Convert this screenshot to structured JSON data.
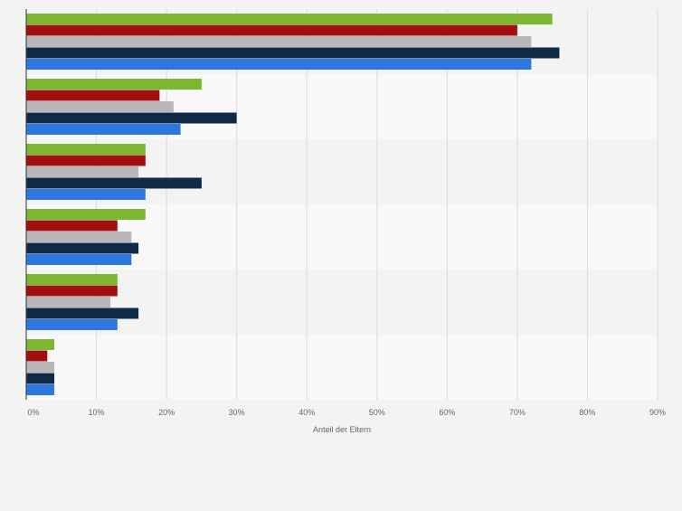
{
  "chart_data": {
    "type": "bar",
    "orientation": "horizontal",
    "xlabel": "Anteil der Eltern",
    "ylabel": "",
    "xlim": [
      0,
      90
    ],
    "x_ticks": [
      "0%",
      "10%",
      "20%",
      "30%",
      "40%",
      "50%",
      "60%",
      "70%",
      "80%",
      "90%"
    ],
    "grid": true,
    "legend": "none",
    "categories": [
      "",
      "",
      "",
      "",
      "",
      ""
    ],
    "series": [
      {
        "color": "#7cb82f",
        "values": [
          75,
          25,
          17,
          17,
          13,
          4
        ]
      },
      {
        "color": "#a20f0f",
        "values": [
          70,
          19,
          17,
          13,
          13,
          3
        ]
      },
      {
        "color": "#b8b8b8",
        "values": [
          72,
          21,
          16,
          15,
          12,
          4
        ]
      },
      {
        "color": "#0e2a47",
        "values": [
          76,
          30,
          25,
          16,
          16,
          4
        ]
      },
      {
        "color": "#2c78df",
        "values": [
          72,
          22,
          17,
          15,
          13,
          4
        ]
      }
    ]
  }
}
